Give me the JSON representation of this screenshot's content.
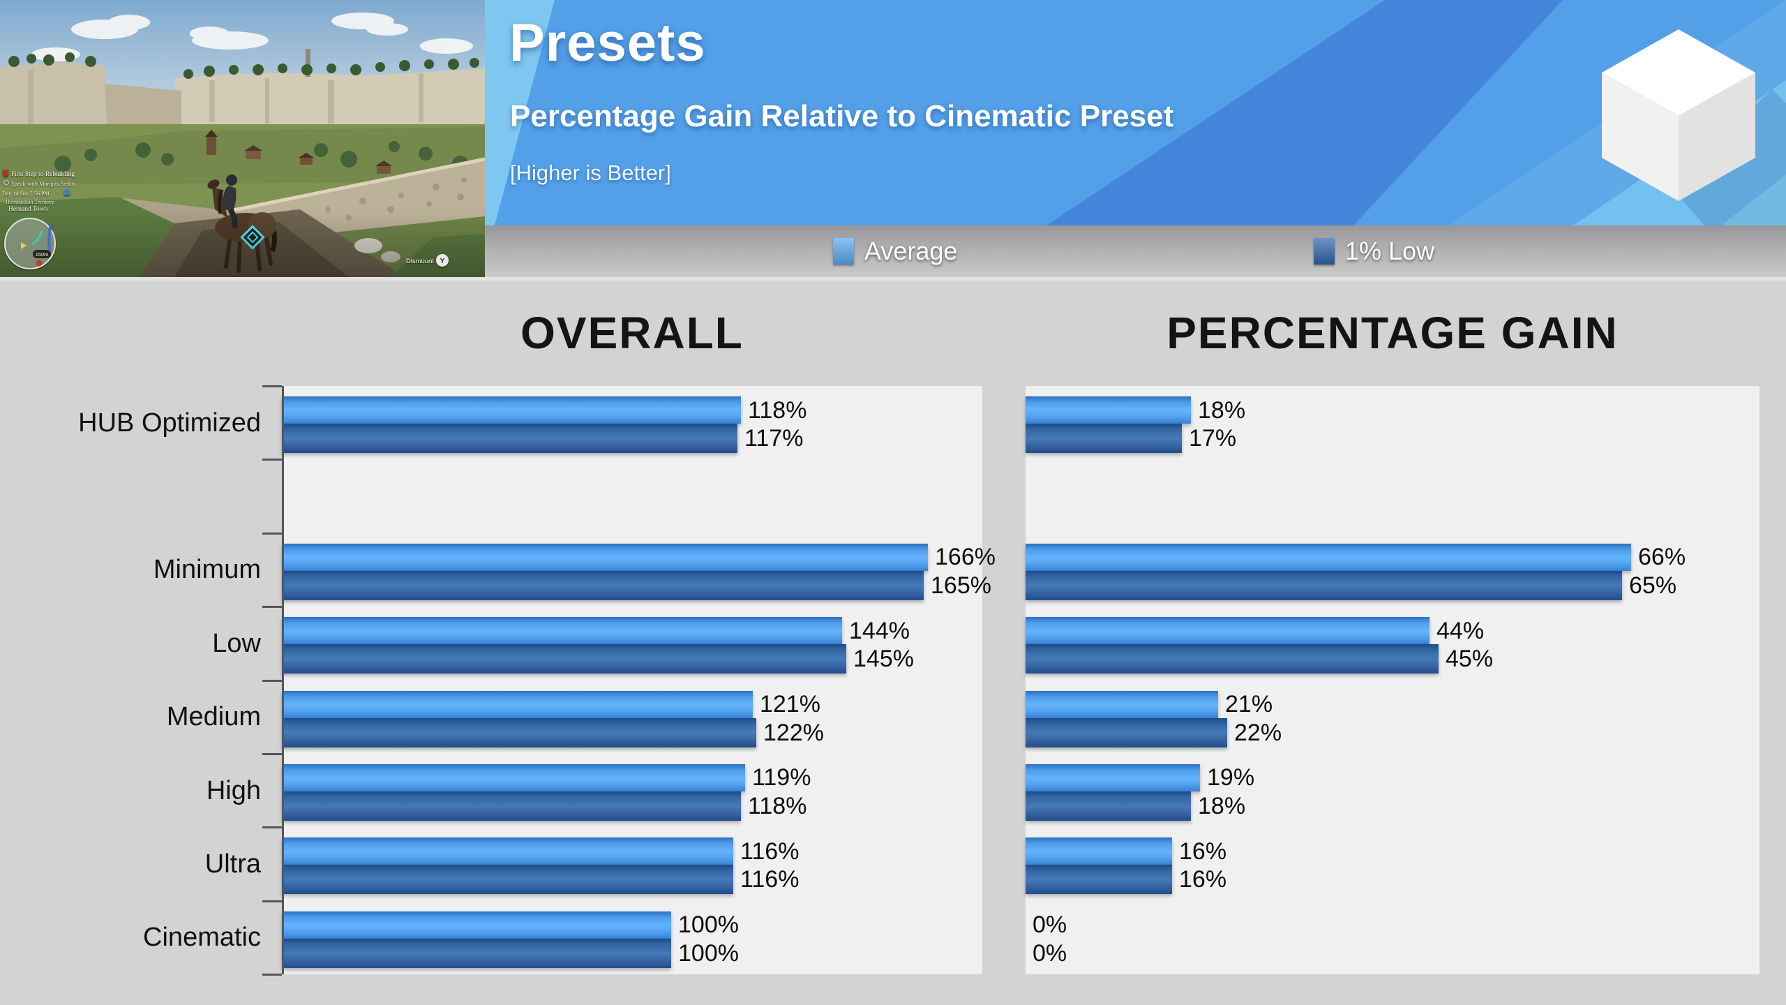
{
  "header": {
    "title": "Presets",
    "subtitle": "Percentage Gain Relative to Cinematic Preset",
    "note": "[Higher is Better]"
  },
  "logo": {
    "icon": "white-cube"
  },
  "legend": {
    "items": [
      {
        "label": "Average",
        "color": "#59A9F1"
      },
      {
        "label": "1% Low",
        "color": "#2E66AC"
      }
    ]
  },
  "game_hud": {
    "quest_title": "First Step to Rebuilding",
    "quest_objective": "Speak with Marquis Serkis",
    "datetime": "Day 14 Sun 5:56 PM",
    "territory": "Hermandian Territory",
    "town": "Hernand Town",
    "map_distance": "150m",
    "dismount_label": "Dismount",
    "dismount_button": "Y"
  },
  "colors": {
    "background": "#D3D3D3",
    "plot_background": "#F0F0F0",
    "header_blue": "#539FE8",
    "legend_bar_gray": "#ABABAD",
    "average_bar": "#59A9F1",
    "one_percent_low_bar": "#2E66AC",
    "value_text": "#0D0D0D"
  },
  "chart_data": [
    {
      "type": "bar",
      "orientation": "horizontal",
      "title": "OVERALL",
      "categories": [
        "HUB Optimized",
        "",
        "Minimum",
        "Low",
        "Medium",
        "High",
        "Ultra",
        "Cinematic"
      ],
      "series": [
        {
          "name": "Average",
          "values": [
            118,
            null,
            166,
            144,
            121,
            119,
            116,
            100
          ]
        },
        {
          "name": "1% Low",
          "values": [
            117,
            null,
            165,
            145,
            122,
            118,
            116,
            100
          ]
        }
      ],
      "value_suffix": "%",
      "xlim": [
        0,
        180
      ],
      "grid": false,
      "show_axis": true,
      "show_category_labels": true
    },
    {
      "type": "bar",
      "orientation": "horizontal",
      "title": "PERCENTAGE GAIN",
      "categories": [
        "HUB Optimized",
        "",
        "Minimum",
        "Low",
        "Medium",
        "High",
        "Ultra",
        "Cinematic"
      ],
      "series": [
        {
          "name": "Average",
          "values": [
            18,
            null,
            66,
            44,
            21,
            19,
            16,
            0
          ]
        },
        {
          "name": "1% Low",
          "values": [
            17,
            null,
            65,
            45,
            22,
            18,
            16,
            0
          ]
        }
      ],
      "value_suffix": "%",
      "xlim": [
        0,
        80
      ],
      "grid": false,
      "show_axis": false,
      "show_category_labels": false
    }
  ]
}
